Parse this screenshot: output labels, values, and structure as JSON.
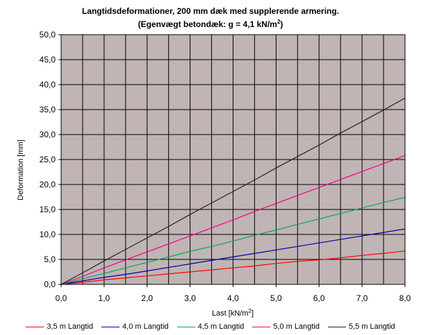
{
  "chart_data": {
    "type": "line",
    "title": "Langtidsdeformationer, 200 mm dæk med supplerende armering.",
    "subtitle": "(Egenvægt betondæk: g = 4,1 kN/m",
    "subtitle_sup": "2",
    "subtitle_end": ")",
    "xlabel": "Last [kN/m",
    "xlabel_sup": "2",
    "xlabel_end": "]",
    "ylabel": "Deformation [mm]",
    "xlim": [
      0,
      8
    ],
    "ylim": [
      0,
      50
    ],
    "xticks": [
      "0,0",
      "1,0",
      "2,0",
      "3,0",
      "4,0",
      "5,0",
      "6,0",
      "7,0",
      "8,0"
    ],
    "yticks": [
      "0,0",
      "5,0",
      "10,0",
      "15,0",
      "20,0",
      "25,0",
      "30,0",
      "35,0",
      "40,0",
      "45,0",
      "50,0"
    ],
    "grid": true,
    "plot_background": "#c0b4b4",
    "legend_position": "bottom",
    "series": [
      {
        "name": "3,5 m Langtid",
        "color": "#ff0000",
        "x": [
          0,
          0.5,
          1,
          1.5,
          2,
          2.5,
          3,
          3.5,
          4,
          4.5,
          5,
          5.5,
          6,
          6.5,
          7,
          7.5,
          8
        ],
        "y": [
          0,
          0.4,
          0.9,
          1.3,
          1.7,
          2.1,
          2.5,
          2.9,
          3.3,
          3.7,
          4.2,
          4.6,
          4.9,
          5.3,
          5.8,
          6.2,
          6.7
        ]
      },
      {
        "name": "4,0 m Langtid",
        "color": "#0000aa",
        "x": [
          0,
          0.5,
          1,
          1.5,
          2,
          2.5,
          3,
          3.5,
          4,
          4.5,
          5,
          5.5,
          6,
          6.5,
          7,
          7.5,
          8
        ],
        "y": [
          0,
          0.7,
          1.4,
          2.0,
          2.7,
          3.4,
          4.1,
          4.8,
          5.5,
          6.2,
          6.9,
          7.6,
          8.3,
          9.0,
          9.7,
          10.4,
          11.1
        ]
      },
      {
        "name": "4,5 m Langtid",
        "color": "#00aa55",
        "x": [
          0,
          0.5,
          1,
          1.5,
          2,
          2.5,
          3,
          3.5,
          4,
          4.5,
          5,
          5.5,
          6,
          6.5,
          7,
          7.5,
          8
        ],
        "y": [
          0,
          1.1,
          2.2,
          3.3,
          4.4,
          5.5,
          6.6,
          7.6,
          8.7,
          9.8,
          10.9,
          12.0,
          13.1,
          14.2,
          15.3,
          16.4,
          17.4
        ]
      },
      {
        "name": "5,0 m Langtid",
        "color": "#ee0088",
        "x": [
          0,
          0.5,
          1,
          1.5,
          2,
          2.5,
          3,
          3.5,
          4,
          4.5,
          5,
          5.5,
          6,
          6.5,
          7,
          7.5,
          8
        ],
        "y": [
          0,
          1.6,
          3.3,
          4.9,
          6.5,
          8.1,
          9.7,
          11.3,
          12.9,
          14.6,
          16.2,
          17.8,
          19.4,
          21.0,
          22.6,
          24.2,
          25.8
        ]
      },
      {
        "name": "5,5 m Langtid",
        "color": "#222222",
        "x": [
          0,
          0.5,
          1,
          1.5,
          2,
          2.5,
          3,
          3.5,
          4,
          4.5,
          5,
          5.5,
          6,
          6.5,
          7,
          7.5,
          8
        ],
        "y": [
          0,
          2.3,
          4.7,
          7.0,
          9.3,
          11.6,
          14.0,
          16.3,
          18.6,
          20.9,
          23.3,
          25.6,
          27.9,
          30.3,
          32.6,
          34.9,
          37.3
        ]
      }
    ]
  }
}
